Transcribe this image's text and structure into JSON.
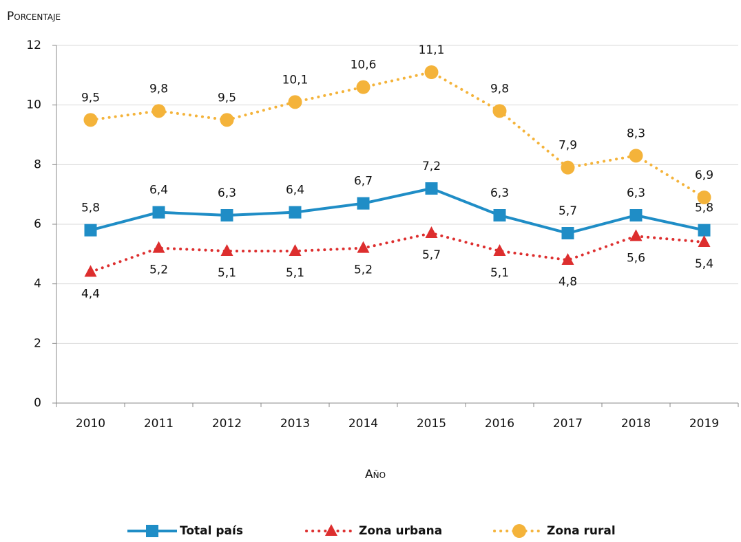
{
  "chart_data": {
    "type": "line",
    "y_label": "Porcentaje",
    "x_label": "Año",
    "categories": [
      "2010",
      "2011",
      "2012",
      "2013",
      "2014",
      "2015",
      "2016",
      "2017",
      "2018",
      "2019"
    ],
    "series": [
      {
        "name": "Total país",
        "color": "#1f8dc6",
        "marker": "square",
        "style": "solid",
        "label_position": "above",
        "values": [
          5.8,
          6.4,
          6.3,
          6.4,
          6.7,
          7.2,
          6.3,
          5.7,
          6.3,
          5.8
        ],
        "value_labels": [
          "5,8",
          "6,4",
          "6,3",
          "6,4",
          "6,7",
          "7,2",
          "6,3",
          "5,7",
          "6,3",
          "5,8"
        ]
      },
      {
        "name": "Zona urbana",
        "color": "#dd2e2e",
        "marker": "triangle",
        "style": "dotted",
        "label_position": "below",
        "values": [
          4.4,
          5.2,
          5.1,
          5.1,
          5.2,
          5.7,
          5.1,
          4.8,
          5.6,
          5.4
        ],
        "value_labels": [
          "4,4",
          "5,2",
          "5,1",
          "5,1",
          "5,2",
          "5,7",
          "5,1",
          "4,8",
          "5,6",
          "5,4"
        ]
      },
      {
        "name": "Zona rural",
        "color": "#f4b33a",
        "marker": "circle",
        "style": "dotted",
        "label_position": "above",
        "values": [
          9.5,
          9.8,
          9.5,
          10.1,
          10.6,
          11.1,
          9.8,
          7.9,
          8.3,
          6.9
        ],
        "value_labels": [
          "9,5",
          "9,8",
          "9,5",
          "10,1",
          "10,6",
          "11,1",
          "9,8",
          "7,9",
          "8,3",
          "6,9"
        ]
      }
    ],
    "ylim": [
      0,
      12
    ],
    "yticks": [
      0,
      2,
      4,
      6,
      8,
      10,
      12
    ],
    "grid": true,
    "legend": "bottom"
  }
}
